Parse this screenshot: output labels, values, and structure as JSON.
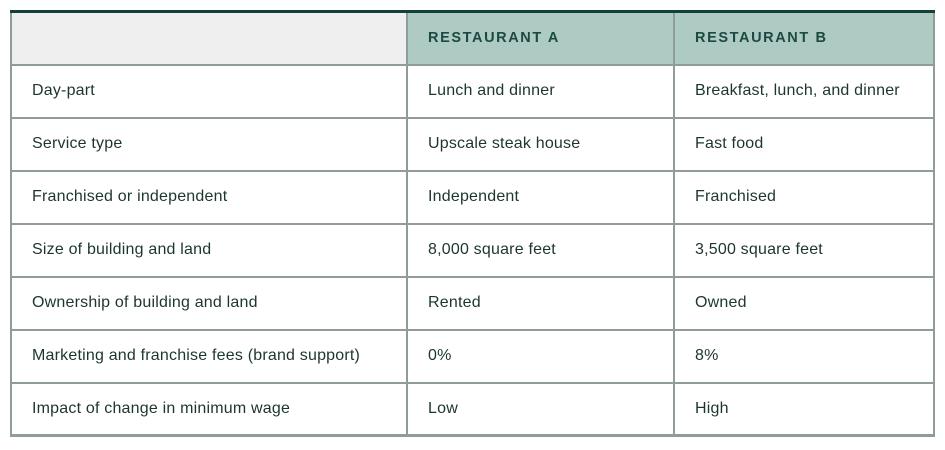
{
  "table": {
    "title_semantic": "restaurant-comparison-table",
    "columns": [
      "",
      "RESTAURANT A",
      "RESTAURANT B"
    ],
    "rows": [
      {
        "label": "Day-part",
        "a": "Lunch and dinner",
        "b": "Breakfast, lunch, and dinner"
      },
      {
        "label": "Service type",
        "a": "Upscale steak house",
        "b": "Fast food"
      },
      {
        "label": "Franchised or independent",
        "a": "Independent",
        "b": "Franchised"
      },
      {
        "label": "Size of building and land",
        "a": "8,000 square feet",
        "b": "3,500 square feet"
      },
      {
        "label": "Ownership of building and land",
        "a": "Rented",
        "b": "Owned"
      },
      {
        "label": "Marketing and franchise fees (brand support)",
        "a": "0%",
        "b": "8%"
      },
      {
        "label": "Impact of change in minimum wage",
        "a": "Low",
        "b": "High"
      }
    ]
  },
  "colors": {
    "header_background": "#adcac3",
    "corner_background": "#efefef",
    "header_text": "#1c4a42",
    "body_text": "#1d3531",
    "grid_border": "#8f9c99",
    "outer_accent_border": "#14403a",
    "page_background": "#ffffff"
  }
}
